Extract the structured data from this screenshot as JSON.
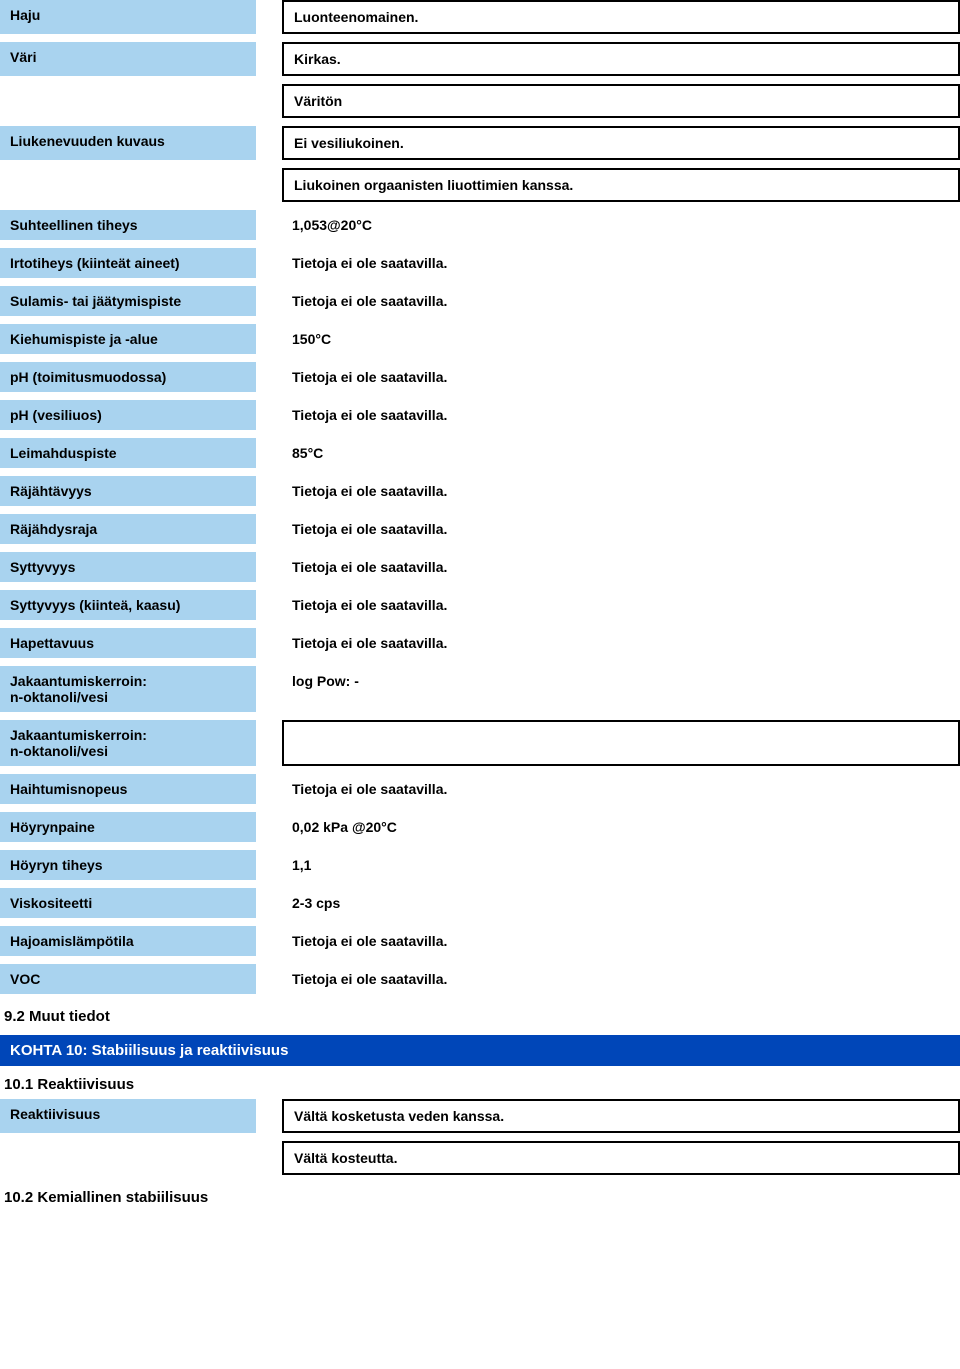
{
  "rows1": [
    {
      "label": "Haju",
      "value": "Luonteenomainen.",
      "boxed": true
    },
    {
      "label": "Väri",
      "value": "Kirkas.",
      "boxed": true
    },
    {
      "label": "",
      "value": "Väritön",
      "boxed": true,
      "noLabel": true
    },
    {
      "label": "Liukenevuuden kuvaus",
      "value": "Ei vesiliukoinen.",
      "boxed": true
    },
    {
      "label": "",
      "value": "Liukoinen orgaanisten liuottimien kanssa.",
      "boxed": true,
      "noLabel": true
    },
    {
      "label": "Suhteellinen tiheys",
      "value": "1,053@20°C",
      "boxed": false
    },
    {
      "label": "Irtotiheys (kiinteät aineet)",
      "value": "Tietoja ei ole saatavilla.",
      "boxed": false
    },
    {
      "label": "Sulamis- tai jäätymispiste",
      "value": "Tietoja ei ole saatavilla.",
      "boxed": false
    },
    {
      "label": "Kiehumispiste ja -alue",
      "value": "150°C",
      "boxed": false
    },
    {
      "label": "pH (toimitusmuodossa)",
      "value": "Tietoja ei ole saatavilla.",
      "boxed": false
    },
    {
      "label": "pH (vesiliuos)",
      "value": "Tietoja ei ole saatavilla.",
      "boxed": false
    },
    {
      "label": "Leimahduspiste",
      "value": "85°C",
      "boxed": false
    },
    {
      "label": "Räjähtävyys",
      "value": "Tietoja ei ole saatavilla.",
      "boxed": false
    },
    {
      "label": "Räjähdysraja",
      "value": "Tietoja ei ole saatavilla.",
      "boxed": false
    },
    {
      "label": "Syttyvyys",
      "value": "Tietoja ei ole saatavilla.",
      "boxed": false
    },
    {
      "label": "Syttyvyys (kiinteä, kaasu)",
      "value": "Tietoja ei ole saatavilla.",
      "boxed": false
    },
    {
      "label": "Hapettavuus",
      "value": "Tietoja ei ole saatavilla.",
      "boxed": false
    },
    {
      "label": "Jakaantumiskerroin:\nn-oktanoli/vesi",
      "value": "log Pow:    -",
      "boxed": false,
      "multiline": true
    },
    {
      "label": "Jakaantumiskerroin:\nn-oktanoli/vesi",
      "value": "",
      "boxed": true,
      "multiline": true,
      "tall": true
    },
    {
      "label": "Haihtumisnopeus",
      "value": "Tietoja ei ole saatavilla.",
      "boxed": false
    },
    {
      "label": "Höyrynpaine",
      "value": "0,02 kPa @20°C",
      "boxed": false
    },
    {
      "label": "Höyryn tiheys",
      "value": "1,1",
      "boxed": false
    },
    {
      "label": "Viskositeetti",
      "value": "2-3 cps",
      "boxed": false
    },
    {
      "label": "Hajoamislämpötila",
      "value": "Tietoja ei ole saatavilla.",
      "boxed": false
    },
    {
      "label": "VOC",
      "value": "Tietoja ei ole saatavilla.",
      "boxed": false
    }
  ],
  "heading92": "9.2 Muut tiedot",
  "section10": "KOHTA 10: Stabiilisuus ja reaktiivisuus",
  "heading101": "10.1 Reaktiivisuus",
  "reactRow": {
    "label": "Reaktiivisuus",
    "value": "Vältä kosketusta veden kanssa."
  },
  "reactRow2": {
    "value": "Vältä kosteutta."
  },
  "heading102": "10.2 Kemiallinen stabiilisuus"
}
